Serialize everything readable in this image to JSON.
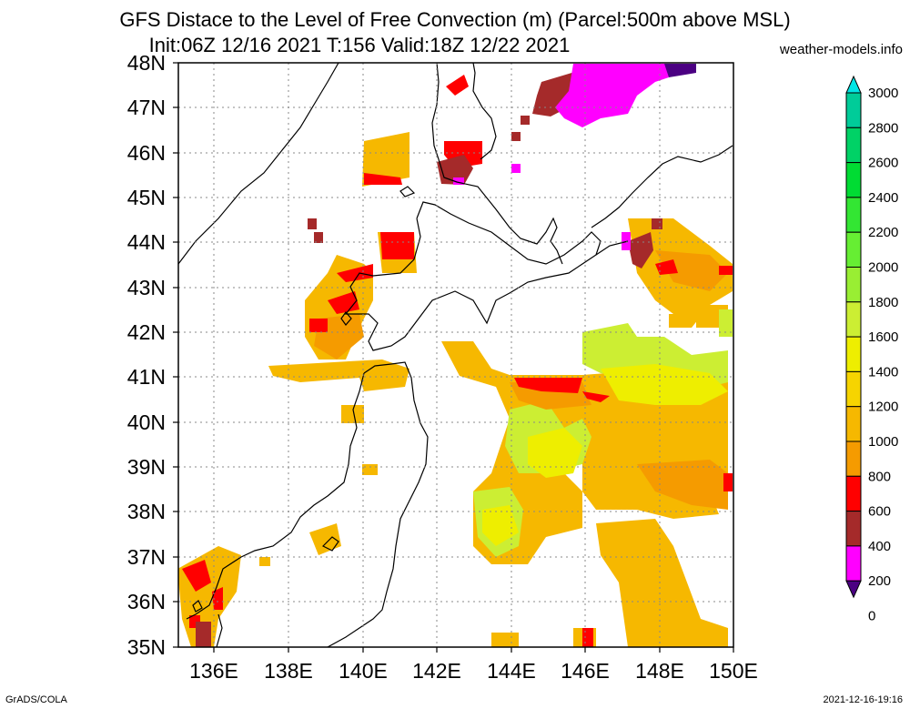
{
  "title_line1": "GFS Distace to the Level of Free Convection (m) (Parcel:500m above MSL)",
  "title_line2": "Init:06Z 12/16 2021 T:156 Valid:18Z 12/22 2021",
  "site": "weather-models.info",
  "footer_left": "GrADS/COLA",
  "footer_right": "2021-12-16-19:16",
  "lat_labels": [
    "48N",
    "47N",
    "46N",
    "45N",
    "44N",
    "43N",
    "42N",
    "41N",
    "40N",
    "39N",
    "38N",
    "37N",
    "36N",
    "35N"
  ],
  "lon_labels": [
    "136E",
    "138E",
    "140E",
    "142E",
    "144E",
    "146E",
    "148E",
    "150E"
  ],
  "colorbar": {
    "labels": [
      "3000",
      "2800",
      "2600",
      "2400",
      "2200",
      "2000",
      "1800",
      "1600",
      "1400",
      "1200",
      "1000",
      "800",
      "600",
      "400",
      "200",
      "0"
    ],
    "colors": [
      "#00e5e5",
      "#00cc99",
      "#00d266",
      "#00dc33",
      "#33e633",
      "#66ee33",
      "#99ee33",
      "#ccee33",
      "#eeee00",
      "#f6d400",
      "#f6b800",
      "#f59b00",
      "#ff0000",
      "#a52a2a",
      "#ff00ff",
      "#4b0082"
    ]
  }
}
